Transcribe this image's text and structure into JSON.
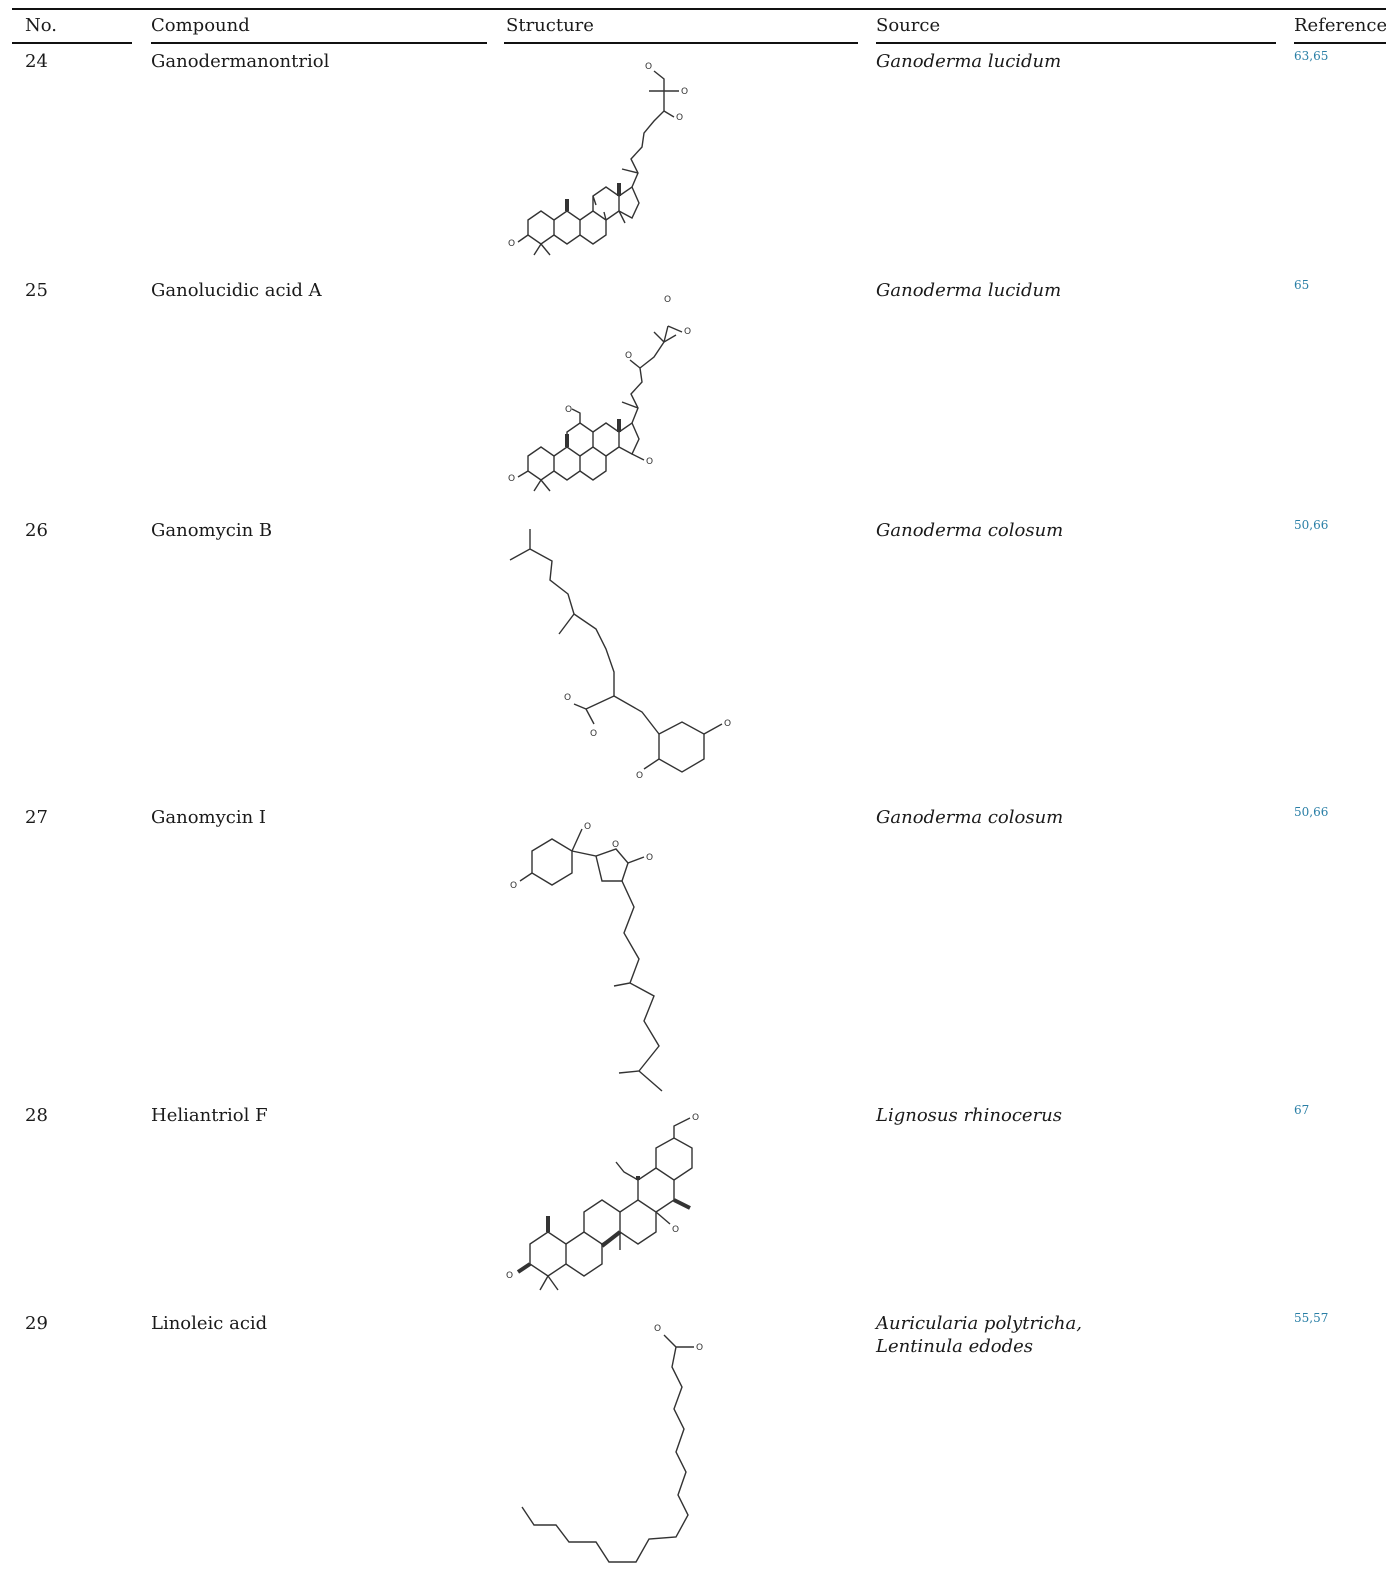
{
  "headers": {
    "no": "No.",
    "compound": "Compound",
    "structure": "Structure",
    "source": "Source",
    "reference": "Reference"
  },
  "rows": [
    {
      "no": "24",
      "compound": "Ganodermanontriol",
      "source": "Ganoderma lucidum",
      "refs": [
        "63",
        "65"
      ]
    },
    {
      "no": "25",
      "compound": "Ganolucidic acid A",
      "source": "Ganoderma lucidum",
      "refs": [
        "65"
      ]
    },
    {
      "no": "26",
      "compound": "Ganomycin B",
      "source": "Ganoderma colosum",
      "refs": [
        "50",
        "66"
      ]
    },
    {
      "no": "27",
      "compound": "Ganomycin I",
      "source": "Ganoderma colosum",
      "refs": [
        "50",
        "66"
      ]
    },
    {
      "no": "28",
      "compound": "Heliantriol F",
      "source": "Lignosus rhinocerus",
      "refs": [
        "67"
      ]
    },
    {
      "no": "29",
      "compound": "Linoleic acid",
      "source_lines": [
        "Auricularia polytricha,",
        "Lentinula edodes"
      ],
      "refs": [
        "55",
        "57"
      ]
    }
  ],
  "atom_label": "O",
  "ref_separator": ",",
  "colors": {
    "rule": "#111111",
    "text": "#1a1a1a",
    "reference_link": "#2a7fa6",
    "bond": "#333333"
  }
}
